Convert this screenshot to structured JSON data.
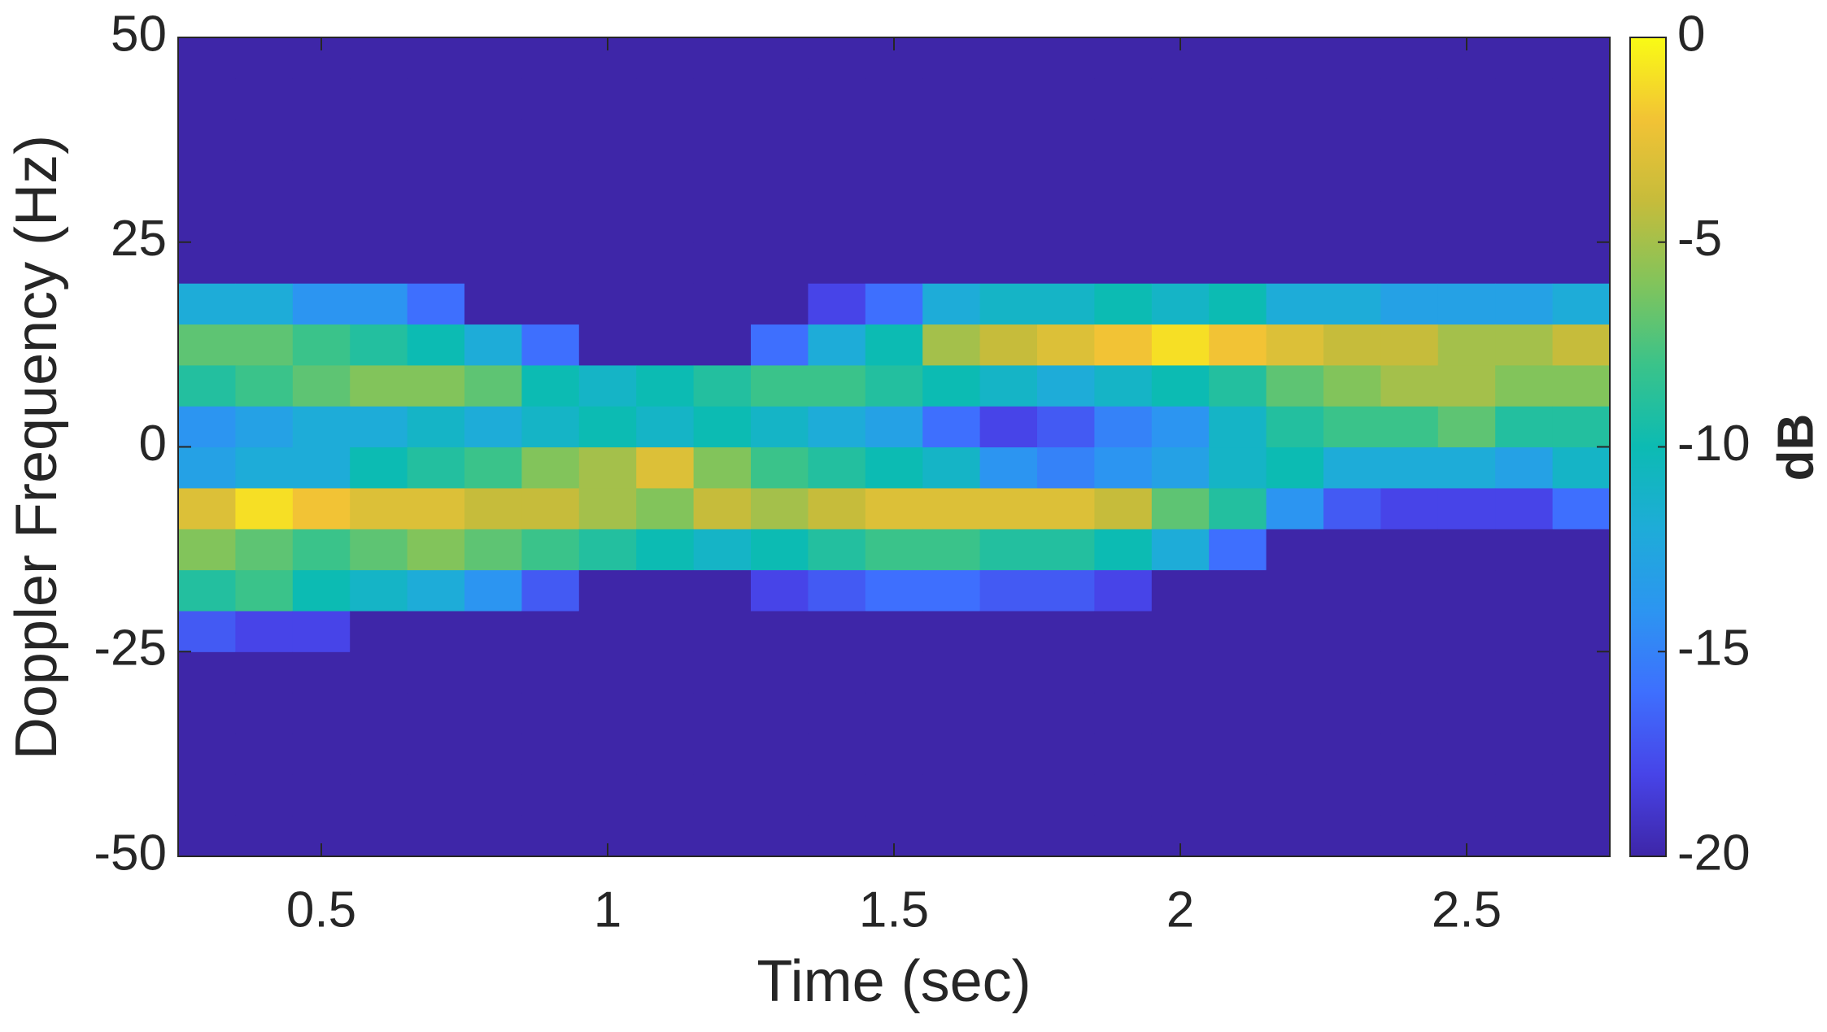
{
  "chart_data": {
    "type": "heatmap",
    "x_label": "Time (sec)",
    "y_label": "Doppler Frequency (Hz)",
    "colorbar_label": "dB",
    "xlim": [
      0.25,
      2.75
    ],
    "ylim": [
      -50,
      50
    ],
    "clim": [
      -20,
      0
    ],
    "xticks": [
      0.5,
      1,
      1.5,
      2,
      2.5
    ],
    "yticks": [
      -50,
      -25,
      0,
      25,
      50
    ],
    "cticks": [
      -20,
      -15,
      -10,
      -5,
      0
    ],
    "colormap": [
      "#3e26a8",
      "#4744e8",
      "#3e6ffe",
      "#2c95f1",
      "#1eacd8",
      "#0cbbb3",
      "#3ac38a",
      "#82c45b",
      "#c6bc3b",
      "#f2c335",
      "#f9fb15"
    ],
    "x": [
      0.3,
      0.4,
      0.5,
      0.6,
      0.7,
      0.8,
      0.9,
      1.0,
      1.1,
      1.2,
      1.3,
      1.4,
      1.5,
      1.6,
      1.7,
      1.8,
      1.9,
      2.0,
      2.1,
      2.2,
      2.3,
      2.4,
      2.5,
      2.6,
      2.7
    ],
    "y": [
      -47.5,
      -42.5,
      -37.5,
      -32.5,
      -27.5,
      -22.5,
      -17.5,
      -12.5,
      -7.5,
      -2.5,
      2.5,
      7.5,
      12.5,
      17.5,
      22.5,
      27.5,
      32.5,
      37.5,
      42.5,
      47.5
    ],
    "z": [
      [
        -20,
        -20,
        -20,
        -20,
        -20,
        -17,
        -9,
        -6,
        -3,
        -13,
        -14,
        -9,
        -7,
        -12,
        -20,
        -20,
        -20,
        -20,
        -20,
        -20
      ],
      [
        -20,
        -20,
        -20,
        -20,
        -20,
        -18,
        -8,
        -7,
        -1,
        -12,
        -13,
        -8,
        -7,
        -12,
        -20,
        -20,
        -20,
        -20,
        -20,
        -20
      ],
      [
        -20,
        -20,
        -20,
        -20,
        -20,
        -18,
        -10,
        -8,
        -2,
        -12,
        -12,
        -7,
        -8,
        -14,
        -20,
        -20,
        -20,
        -20,
        -20,
        -20
      ],
      [
        -20,
        -20,
        -20,
        -20,
        -20,
        -20,
        -11,
        -7,
        -3,
        -10,
        -12,
        -6,
        -9,
        -14,
        -20,
        -20,
        -20,
        -20,
        -20,
        -20
      ],
      [
        -20,
        -20,
        -20,
        -20,
        -20,
        -20,
        -12,
        -6,
        -3,
        -9,
        -11,
        -6,
        -10,
        -16,
        -20,
        -20,
        -20,
        -20,
        -20,
        -20
      ],
      [
        -20,
        -20,
        -20,
        -20,
        -20,
        -20,
        -14,
        -7,
        -4,
        -8,
        -12,
        -7,
        -12,
        -20,
        -20,
        -20,
        -20,
        -20,
        -20,
        -20
      ],
      [
        -20,
        -20,
        -20,
        -20,
        -20,
        -20,
        -17,
        -8,
        -4,
        -6,
        -11,
        -10,
        -16,
        -20,
        -20,
        -20,
        -20,
        -20,
        -20,
        -20
      ],
      [
        -20,
        -20,
        -20,
        -20,
        -20,
        -20,
        -20,
        -9,
        -5,
        -5,
        -10,
        -11,
        -20,
        -20,
        -20,
        -20,
        -20,
        -20,
        -20,
        -20
      ],
      [
        -20,
        -20,
        -20,
        -20,
        -20,
        -20,
        -20,
        -10,
        -6,
        -3,
        -11,
        -10,
        -20,
        -20,
        -20,
        -20,
        -20,
        -20,
        -20,
        -20
      ],
      [
        -20,
        -20,
        -20,
        -20,
        -20,
        -20,
        -20,
        -11,
        -4,
        -6,
        -10,
        -9,
        -20,
        -20,
        -20,
        -20,
        -20,
        -20,
        -20,
        -20
      ],
      [
        -20,
        -20,
        -20,
        -20,
        -20,
        -20,
        -18,
        -10,
        -5,
        -8,
        -11,
        -8,
        -16,
        -20,
        -20,
        -20,
        -20,
        -20,
        -20,
        -20
      ],
      [
        -20,
        -20,
        -20,
        -20,
        -20,
        -20,
        -17,
        -9,
        -4,
        -9,
        -12,
        -8,
        -12,
        -18,
        -20,
        -20,
        -20,
        -20,
        -20,
        -20
      ],
      [
        -20,
        -20,
        -20,
        -20,
        -20,
        -20,
        -16,
        -8,
        -3,
        -10,
        -13,
        -9,
        -10,
        -16,
        -20,
        -20,
        -20,
        -20,
        -20,
        -20
      ],
      [
        -20,
        -20,
        -20,
        -20,
        -20,
        -20,
        -16,
        -8,
        -3,
        -11,
        -16,
        -10,
        -5,
        -12,
        -20,
        -20,
        -20,
        -20,
        -20,
        -20
      ],
      [
        -20,
        -20,
        -20,
        -20,
        -20,
        -20,
        -17,
        -9,
        -3,
        -14,
        -18,
        -11,
        -4,
        -11,
        -20,
        -20,
        -20,
        -20,
        -20,
        -20
      ],
      [
        -20,
        -20,
        -20,
        -20,
        -20,
        -20,
        -17,
        -9,
        -3,
        -15,
        -17,
        -12,
        -3,
        -11,
        -20,
        -20,
        -20,
        -20,
        -20,
        -20
      ],
      [
        -20,
        -20,
        -20,
        -20,
        -20,
        -20,
        -18,
        -10,
        -4,
        -14,
        -15,
        -11,
        -2,
        -10,
        -20,
        -20,
        -20,
        -20,
        -20,
        -20
      ],
      [
        -20,
        -20,
        -20,
        -20,
        -20,
        -20,
        -20,
        -12,
        -7,
        -13,
        -14,
        -10,
        -1,
        -11,
        -20,
        -20,
        -20,
        -20,
        -20,
        -20
      ],
      [
        -20,
        -20,
        -20,
        -20,
        -20,
        -20,
        -20,
        -16,
        -9,
        -11,
        -11,
        -9,
        -2,
        -10,
        -20,
        -20,
        -20,
        -20,
        -20,
        -20
      ],
      [
        -20,
        -20,
        -20,
        -20,
        -20,
        -20,
        -20,
        -20,
        -14,
        -10,
        -9,
        -7,
        -3,
        -12,
        -20,
        -20,
        -20,
        -20,
        -20,
        -20
      ],
      [
        -20,
        -20,
        -20,
        -20,
        -20,
        -20,
        -20,
        -20,
        -17,
        -12,
        -8,
        -6,
        -4,
        -12,
        -20,
        -20,
        -20,
        -20,
        -20,
        -20
      ],
      [
        -20,
        -20,
        -20,
        -20,
        -20,
        -20,
        -20,
        -20,
        -18,
        -12,
        -8,
        -5,
        -4,
        -13,
        -20,
        -20,
        -20,
        -20,
        -20,
        -20
      ],
      [
        -20,
        -20,
        -20,
        -20,
        -20,
        -20,
        -20,
        -20,
        -18,
        -12,
        -7,
        -5,
        -5,
        -13,
        -20,
        -20,
        -20,
        -20,
        -20,
        -20
      ],
      [
        -20,
        -20,
        -20,
        -20,
        -20,
        -20,
        -20,
        -20,
        -18,
        -13,
        -9,
        -6,
        -5,
        -13,
        -20,
        -20,
        -20,
        -20,
        -20,
        -20
      ],
      [
        -20,
        -20,
        -20,
        -20,
        -20,
        -20,
        -20,
        -20,
        -16,
        -11,
        -9,
        -6,
        -4,
        -12,
        -20,
        -20,
        -20,
        -20,
        -20,
        -20
      ]
    ]
  }
}
